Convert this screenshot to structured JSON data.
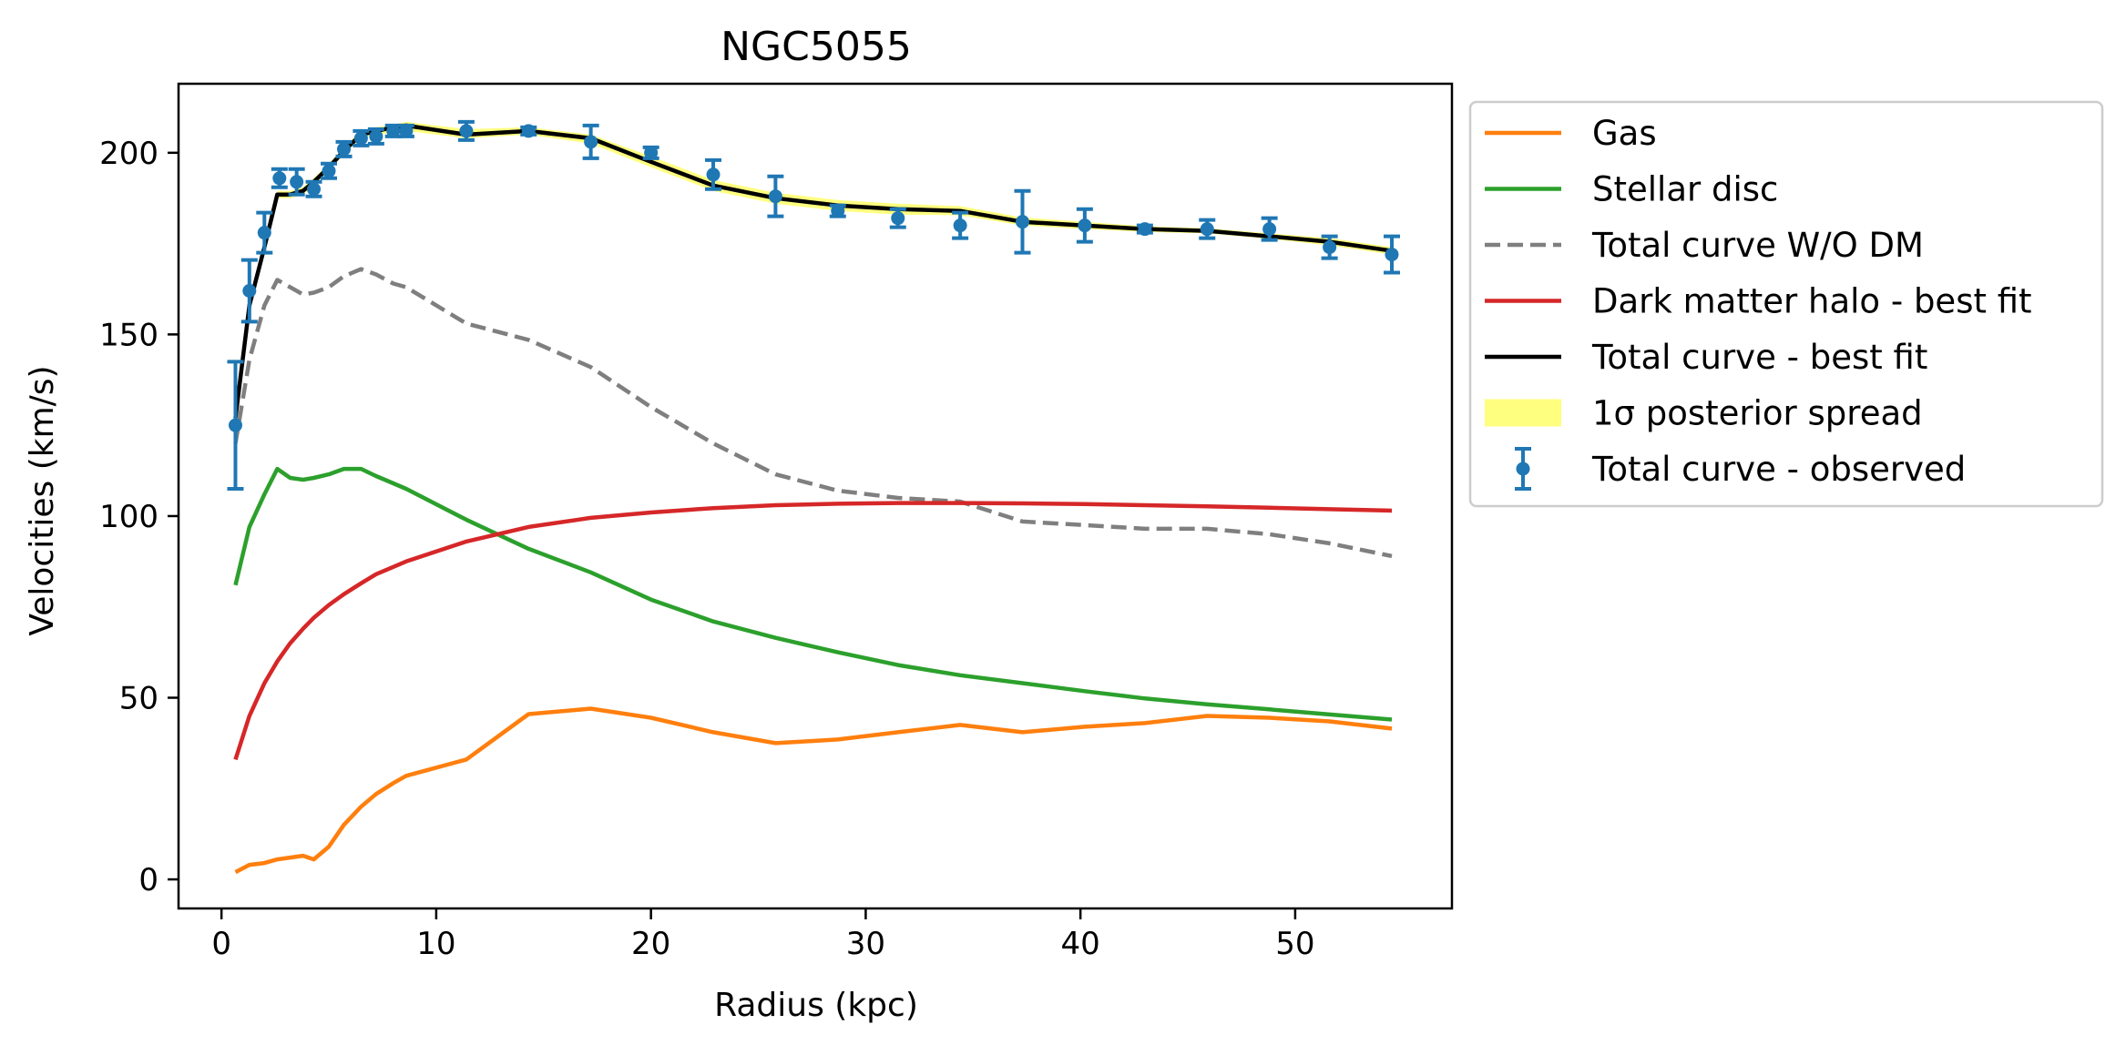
{
  "chart_data": {
    "type": "line",
    "title": "NGC5055",
    "xlabel": "Radius (kpc)",
    "ylabel": "Velocities (km/s)",
    "xlim": [
      -2,
      57.3
    ],
    "ylim": [
      -8,
      219
    ],
    "xticks": [
      0,
      10,
      20,
      30,
      40,
      50
    ],
    "yticks": [
      0,
      50,
      100,
      150,
      200
    ],
    "grid": false,
    "legend_placement": "outside-right-top",
    "series": [
      {
        "name": "Gas",
        "color": "#ff7f0e",
        "style": "solid",
        "x": [
          0.65,
          1.3,
          2.0,
          2.6,
          3.2,
          3.8,
          4.3,
          5.0,
          5.7,
          6.5,
          7.2,
          8.0,
          8.6,
          11.4,
          14.3,
          17.2,
          20.0,
          22.9,
          25.8,
          28.7,
          31.5,
          34.4,
          37.3,
          40.2,
          43.0,
          45.9,
          48.8,
          51.6,
          54.5
        ],
        "y": [
          2,
          4,
          4.5,
          5.5,
          6,
          6.5,
          5.5,
          9,
          15,
          20,
          23.5,
          26.5,
          28.5,
          33,
          45.5,
          47,
          44.5,
          40.5,
          37.5,
          38.5,
          40.5,
          42.5,
          40.5,
          42,
          43,
          45,
          44.5,
          43.5,
          41.5
        ]
      },
      {
        "name": "Stellar disc",
        "color": "#2ca02c",
        "style": "solid",
        "x": [
          0.65,
          1.3,
          2.0,
          2.6,
          3.2,
          3.8,
          4.3,
          5.0,
          5.7,
          6.5,
          7.2,
          8.0,
          8.6,
          11.4,
          14.3,
          17.2,
          20.0,
          22.9,
          25.8,
          28.7,
          31.5,
          34.4,
          37.3,
          40.2,
          43.0,
          45.9,
          48.8,
          51.6,
          54.5
        ],
        "y": [
          81,
          97,
          106,
          113,
          110.5,
          110,
          110.5,
          111.5,
          113,
          113,
          111,
          109,
          107.5,
          99,
          91,
          84.5,
          77,
          71,
          66.5,
          62.5,
          59,
          56.2,
          54,
          51.8,
          49.8,
          48.2,
          46.8,
          45.4,
          44
        ]
      },
      {
        "name": "Total curve W/O DM",
        "color": "#7f7f7f",
        "style": "dashed",
        "x": [
          0.65,
          1.3,
          2.0,
          2.6,
          3.2,
          3.8,
          4.3,
          5.0,
          5.7,
          6.5,
          7.2,
          8.0,
          8.6,
          11.4,
          14.3,
          17.2,
          20.0,
          22.9,
          25.8,
          28.7,
          31.5,
          34.4,
          37.3,
          40.2,
          43.0,
          45.9,
          48.8,
          51.6,
          54.5
        ],
        "y": [
          120,
          143,
          158,
          165,
          163,
          161,
          161.5,
          163,
          166,
          168,
          166.5,
          164,
          163,
          153,
          148.5,
          141,
          130,
          120,
          111.5,
          107,
          105,
          104,
          98.5,
          97.5,
          96.5,
          96.5,
          95,
          92.5,
          89
        ]
      },
      {
        "name": "Dark matter halo - best fit",
        "color": "#d62728",
        "style": "solid",
        "x": [
          0.65,
          1.3,
          2.0,
          2.6,
          3.2,
          3.8,
          4.3,
          5.0,
          5.7,
          6.5,
          7.2,
          8.0,
          8.6,
          11.4,
          14.3,
          17.2,
          20.0,
          22.9,
          25.8,
          28.7,
          31.5,
          34.4,
          37.3,
          40.2,
          43.0,
          45.9,
          48.8,
          51.6,
          54.5
        ],
        "y": [
          33,
          45,
          54,
          60,
          65,
          69,
          72,
          75.5,
          78.5,
          81.5,
          84,
          86,
          87.5,
          93,
          97,
          99.5,
          101,
          102.2,
          103,
          103.4,
          103.6,
          103.6,
          103.5,
          103.3,
          103,
          102.7,
          102.3,
          101.9,
          101.5
        ]
      },
      {
        "name": "Total curve - best fit",
        "color": "#000000",
        "style": "solid",
        "x": [
          0.65,
          1.3,
          2.0,
          2.6,
          3.2,
          3.8,
          4.3,
          5.0,
          5.7,
          6.5,
          7.2,
          8.0,
          8.6,
          11.4,
          14.3,
          17.2,
          20.0,
          22.9,
          25.8,
          28.7,
          31.5,
          34.4,
          37.3,
          40.2,
          43.0,
          45.9,
          48.8,
          51.6,
          54.5
        ],
        "y": [
          127,
          158,
          174,
          188.5,
          188.5,
          189.5,
          192,
          196,
          200.5,
          205,
          206,
          207,
          207.5,
          205,
          206,
          204,
          197.5,
          191,
          187.5,
          185.5,
          184.5,
          184,
          181,
          180,
          179,
          178.5,
          177,
          175.5,
          173
        ]
      }
    ],
    "band": {
      "name": "1σ posterior spread",
      "color": "#ffff00",
      "opacity": 0.5,
      "x": [
        0.65,
        1.3,
        2.0,
        2.6,
        3.2,
        3.8,
        4.3,
        5.0,
        5.7,
        6.5,
        7.2,
        8.0,
        8.6,
        11.4,
        14.3,
        17.2,
        20.0,
        22.9,
        25.8,
        28.7,
        31.5,
        34.4,
        37.3,
        40.2,
        43.0,
        45.9,
        48.8,
        51.6,
        54.5
      ],
      "lower": [
        126,
        157,
        173,
        187.5,
        187.5,
        188.5,
        191,
        195,
        199.5,
        204,
        205,
        205.5,
        206,
        204,
        205,
        202.5,
        196,
        189.5,
        186,
        184,
        183,
        182.8,
        180,
        179,
        178.2,
        177.8,
        176.3,
        174.5,
        172
      ],
      "upper": [
        128,
        159,
        175,
        189.5,
        189.5,
        190.5,
        193,
        197,
        201.5,
        206,
        207,
        207.8,
        208.5,
        206.5,
        207,
        205,
        199,
        192.5,
        189,
        187,
        186,
        185.3,
        182.2,
        181,
        179.8,
        179.2,
        177.8,
        176.5,
        174
      ]
    },
    "observed": {
      "name": "Total curve - observed",
      "color": "#1f77b4",
      "x": [
        0.65,
        1.3,
        2.0,
        2.7,
        3.5,
        4.3,
        5.0,
        5.7,
        6.5,
        7.2,
        8.0,
        8.6,
        11.4,
        14.3,
        17.2,
        20.0,
        22.9,
        25.8,
        28.7,
        31.5,
        34.4,
        37.3,
        40.2,
        43.0,
        45.9,
        48.8,
        51.6,
        54.5
      ],
      "y": [
        125,
        162,
        178,
        193,
        192,
        190,
        195,
        201,
        204,
        204.5,
        206,
        206,
        206,
        206,
        203,
        200,
        194,
        188,
        184,
        182,
        180,
        181,
        180,
        179,
        179,
        179,
        174,
        172
      ],
      "err": [
        17.5,
        8.5,
        5.5,
        2.5,
        3.5,
        2,
        2,
        2,
        2,
        2,
        1.5,
        1.5,
        2.5,
        1,
        4.5,
        1.5,
        4,
        5.5,
        1.5,
        2.5,
        3.5,
        8.5,
        4.5,
        1,
        2.5,
        3,
        3,
        5
      ]
    }
  }
}
